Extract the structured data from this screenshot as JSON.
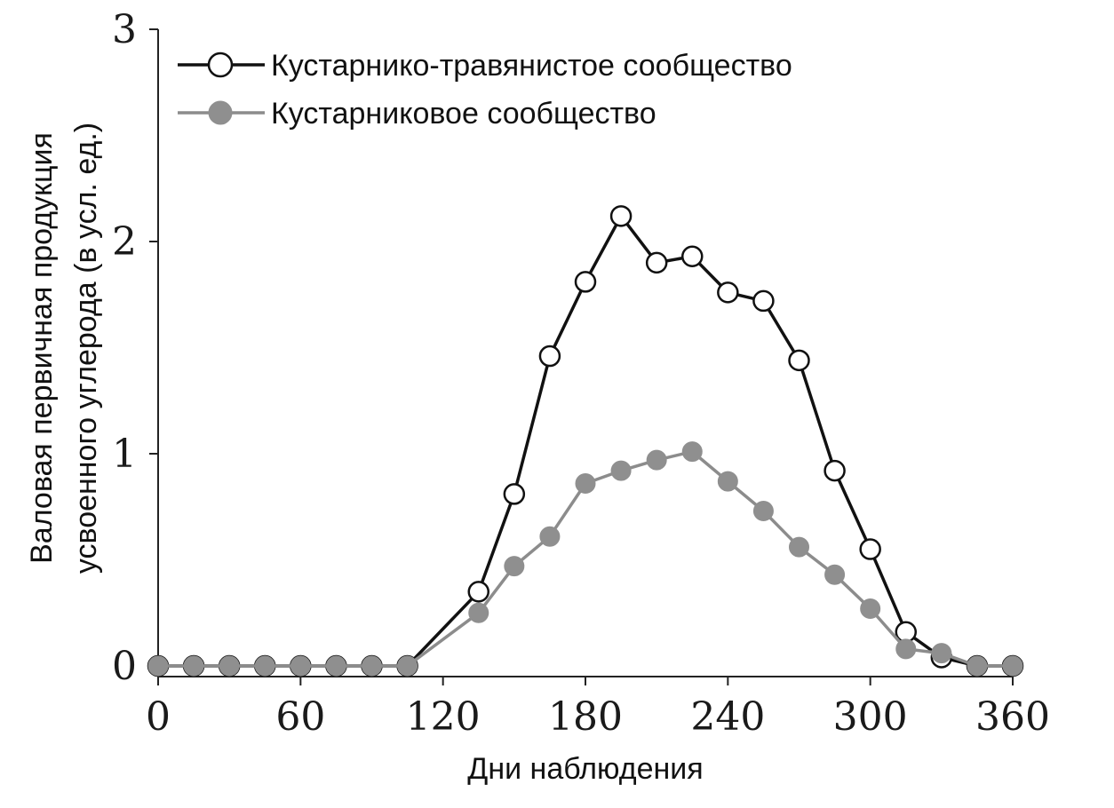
{
  "chart_data": {
    "type": "line",
    "xlabel": "Дни наблюдения",
    "ylabel_lines": [
      "Валовая первичная продукция",
      "усвоенного углерода (в усл. ед.)"
    ],
    "xlim": [
      0,
      360
    ],
    "ylim": [
      0,
      3
    ],
    "x_ticks": [
      "0",
      "60",
      "120",
      "180",
      "240",
      "300",
      "360"
    ],
    "y_ticks": [
      "0",
      "1",
      "2",
      "3"
    ],
    "grid": false,
    "legend_position": "top-left",
    "x": [
      0,
      15,
      30,
      45,
      60,
      75,
      90,
      105,
      135,
      150,
      165,
      180,
      195,
      210,
      225,
      240,
      255,
      270,
      285,
      300,
      315,
      330,
      345,
      360
    ],
    "series": [
      {
        "name": "Кустарнико-травянистое сообщество",
        "marker": "open-circle",
        "line_color": "#111111",
        "values": [
          0,
          0,
          0,
          0,
          0,
          0,
          0,
          0,
          0.35,
          0.81,
          1.46,
          1.81,
          2.12,
          1.9,
          1.93,
          1.76,
          1.72,
          1.44,
          0.92,
          0.55,
          0.16,
          0.04,
          0,
          0
        ]
      },
      {
        "name": "Кустарниковое сообщество",
        "marker": "filled-circle",
        "line_color": "#8c8c8c",
        "values": [
          0,
          0,
          0,
          0,
          0,
          0,
          0,
          0,
          0.25,
          0.47,
          0.61,
          0.86,
          0.92,
          0.97,
          1.01,
          0.87,
          0.73,
          0.56,
          0.43,
          0.27,
          0.08,
          0.06,
          0,
          0
        ]
      }
    ]
  }
}
